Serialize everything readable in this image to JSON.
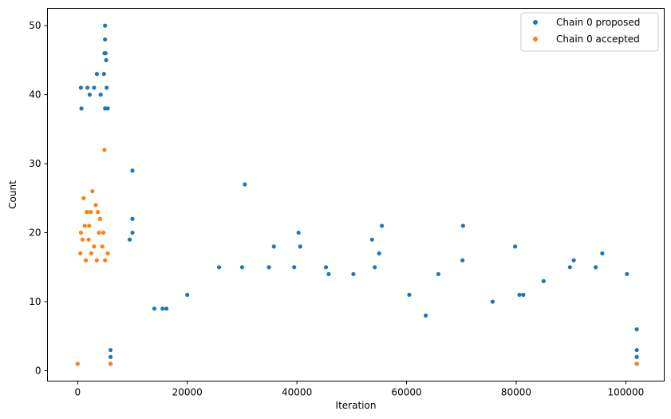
{
  "chart_data": {
    "type": "scatter",
    "xlabel": "Iteration",
    "ylabel": "Count",
    "xlim": [
      -5500,
      107000
    ],
    "ylim": [
      -1.5,
      52.5
    ],
    "xticks": [
      0,
      20000,
      40000,
      60000,
      80000,
      100000
    ],
    "yticks": [
      0,
      10,
      20,
      30,
      40,
      50
    ],
    "legend_position": "top-right",
    "series": [
      {
        "name": "Chain 0 proposed",
        "color": "#1f77b4",
        "points": [
          [
            5000,
            50
          ],
          [
            5000,
            48
          ],
          [
            4900,
            46
          ],
          [
            5100,
            46
          ],
          [
            5200,
            45
          ],
          [
            3500,
            43
          ],
          [
            4800,
            43
          ],
          [
            600,
            41
          ],
          [
            1800,
            41
          ],
          [
            3000,
            41
          ],
          [
            5300,
            41
          ],
          [
            2200,
            40
          ],
          [
            4200,
            40
          ],
          [
            700,
            38
          ],
          [
            5000,
            38
          ],
          [
            5500,
            38
          ],
          [
            10000,
            29
          ],
          [
            30500,
            27
          ],
          [
            10000,
            22
          ],
          [
            55500,
            21
          ],
          [
            70300,
            21
          ],
          [
            40300,
            20
          ],
          [
            10000,
            20
          ],
          [
            53700,
            19
          ],
          [
            9500,
            19
          ],
          [
            35800,
            18
          ],
          [
            40600,
            18
          ],
          [
            79800,
            18
          ],
          [
            55000,
            17
          ],
          [
            95700,
            17
          ],
          [
            90500,
            16
          ],
          [
            70200,
            16
          ],
          [
            25800,
            15
          ],
          [
            30000,
            15
          ],
          [
            34900,
            15
          ],
          [
            39500,
            15
          ],
          [
            45300,
            15
          ],
          [
            54200,
            15
          ],
          [
            89800,
            15
          ],
          [
            94500,
            15
          ],
          [
            45800,
            14
          ],
          [
            50300,
            14
          ],
          [
            65800,
            14
          ],
          [
            85000,
            13
          ],
          [
            14000,
            9
          ],
          [
            15500,
            9
          ],
          [
            16200,
            9
          ],
          [
            20000,
            11
          ],
          [
            60500,
            11
          ],
          [
            63500,
            8
          ],
          [
            75700,
            10
          ],
          [
            80600,
            11
          ],
          [
            81300,
            11
          ],
          [
            100200,
            14
          ],
          [
            102000,
            6
          ],
          [
            6000,
            1
          ],
          [
            102000,
            1
          ],
          [
            6000,
            2
          ],
          [
            102000,
            2
          ],
          [
            6000,
            3
          ],
          [
            102000,
            3
          ]
        ]
      },
      {
        "name": "Chain 0 accepted",
        "color": "#ff7f0e",
        "points": [
          [
            0,
            1
          ],
          [
            6000,
            1
          ],
          [
            102000,
            1
          ],
          [
            4900,
            32
          ],
          [
            2700,
            26
          ],
          [
            1100,
            25
          ],
          [
            3300,
            24
          ],
          [
            1700,
            23
          ],
          [
            2400,
            23
          ],
          [
            3700,
            23
          ],
          [
            1300,
            21
          ],
          [
            2100,
            21
          ],
          [
            4100,
            22
          ],
          [
            600,
            20
          ],
          [
            3900,
            20
          ],
          [
            4700,
            20
          ],
          [
            900,
            19
          ],
          [
            2000,
            19
          ],
          [
            3000,
            18
          ],
          [
            4500,
            18
          ],
          [
            2500,
            17
          ],
          [
            500,
            17
          ],
          [
            5500,
            17
          ],
          [
            1500,
            16
          ],
          [
            3500,
            16
          ],
          [
            5000,
            16
          ]
        ]
      }
    ]
  }
}
